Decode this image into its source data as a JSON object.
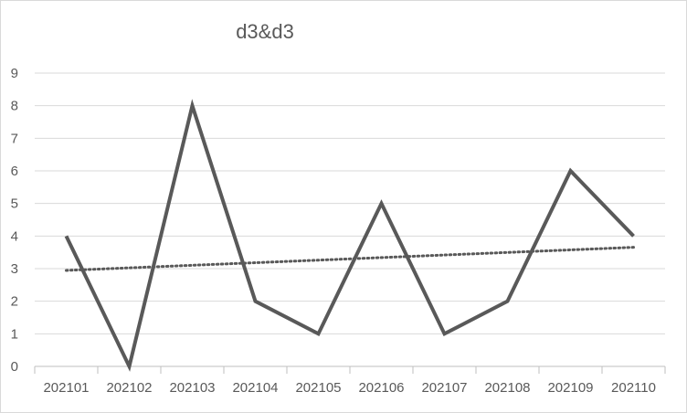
{
  "chart_data": {
    "type": "line",
    "title": "d3&d3",
    "categories": [
      "202101",
      "202102",
      "202103",
      "202104",
      "202105",
      "202106",
      "202107",
      "202108",
      "202109",
      "202110"
    ],
    "series": [
      {
        "values": [
          4,
          0,
          8,
          2,
          1,
          5,
          1,
          2,
          6,
          4
        ]
      }
    ],
    "trendline": {
      "type": "linear",
      "style": "dotted"
    },
    "ylim": [
      0,
      9
    ],
    "yticks": [
      0,
      1,
      2,
      3,
      4,
      5,
      6,
      7,
      8,
      9
    ],
    "xlabel": "",
    "ylabel": "",
    "grid": true,
    "legend": "none",
    "colors": {
      "series": "#595959",
      "trendline": "#595959",
      "grid": "#d9d9d9",
      "axis": "#bfbfbf",
      "text": "#595959"
    }
  }
}
